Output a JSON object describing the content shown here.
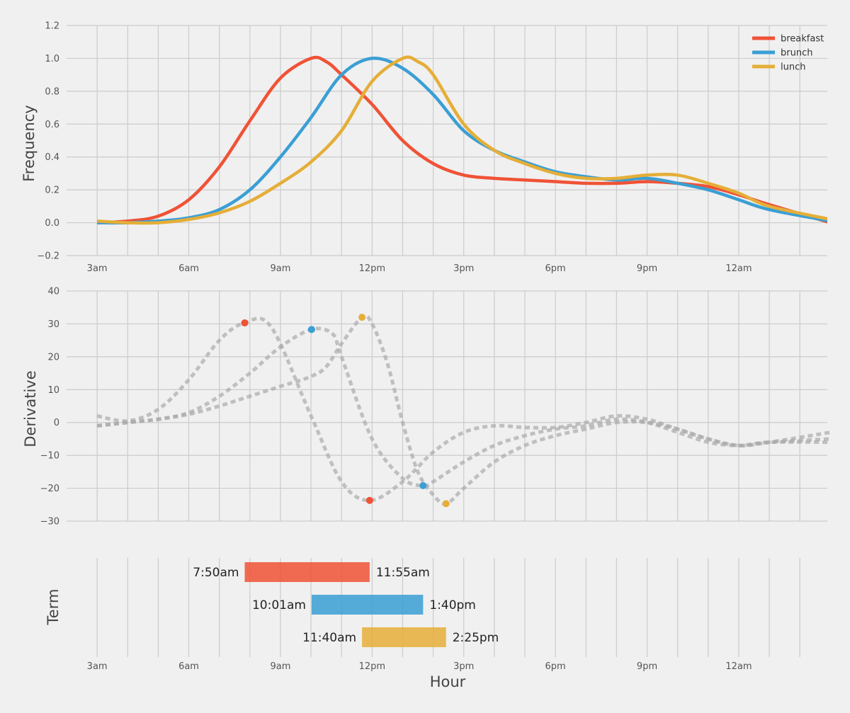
{
  "chart_data": [
    {
      "type": "line",
      "ylabel": "Frequency",
      "ylim": [
        -0.2,
        1.2
      ],
      "yticks": [
        -0.2,
        0.0,
        0.2,
        0.4,
        0.6,
        0.8,
        1.0,
        1.2
      ],
      "ytick_labels": [
        "−0.2",
        "0.0",
        "0.2",
        "0.4",
        "0.6",
        "0.8",
        "1.0",
        "1.2"
      ],
      "xticks": [
        3,
        6,
        9,
        12,
        15,
        18,
        21,
        24
      ],
      "xtick_labels": [
        "3am",
        "6am",
        "9am",
        "12pm",
        "3pm",
        "6pm",
        "9pm",
        "12am"
      ],
      "grid": true,
      "legend": "top-right",
      "series": [
        {
          "name": "breakfast",
          "color": "#f05236",
          "x": [
            3,
            4,
            5,
            6,
            7,
            8,
            9,
            10,
            10.5,
            11,
            12,
            13,
            14,
            15,
            16,
            17,
            18,
            19,
            20,
            21,
            22,
            23,
            24,
            25,
            27
          ],
          "y": [
            0.0,
            0.01,
            0.04,
            0.14,
            0.34,
            0.62,
            0.88,
            1.0,
            0.98,
            0.9,
            0.72,
            0.5,
            0.36,
            0.29,
            0.27,
            0.26,
            0.25,
            0.24,
            0.24,
            0.25,
            0.24,
            0.22,
            0.17,
            0.11,
            0.0
          ]
        },
        {
          "name": "brunch",
          "color": "#3a9fd4",
          "x": [
            3,
            4,
            5,
            6,
            7,
            8,
            9,
            10,
            11,
            12,
            13,
            14,
            15,
            16,
            17,
            18,
            19,
            20,
            21,
            22,
            23,
            24,
            25,
            27
          ],
          "y": [
            0.0,
            0.0,
            0.01,
            0.03,
            0.08,
            0.2,
            0.4,
            0.64,
            0.9,
            1.0,
            0.94,
            0.78,
            0.56,
            0.44,
            0.37,
            0.31,
            0.28,
            0.26,
            0.27,
            0.24,
            0.2,
            0.14,
            0.08,
            0.01
          ]
        },
        {
          "name": "lunch",
          "color": "#e5ae38",
          "x": [
            3,
            4,
            5,
            6,
            7,
            8,
            9,
            10,
            11,
            12,
            13,
            13.5,
            14,
            15,
            16,
            17,
            18,
            19,
            20,
            21,
            22,
            23,
            24,
            25,
            27
          ],
          "y": [
            0.01,
            0.0,
            0.0,
            0.02,
            0.06,
            0.13,
            0.24,
            0.37,
            0.56,
            0.86,
            1.0,
            0.98,
            0.9,
            0.6,
            0.44,
            0.36,
            0.3,
            0.27,
            0.27,
            0.29,
            0.29,
            0.24,
            0.18,
            0.1,
            0.02
          ]
        }
      ]
    },
    {
      "type": "line",
      "ylabel": "Derivative",
      "ylim": [
        -30,
        40
      ],
      "yticks": [
        -30,
        -20,
        -10,
        0,
        10,
        20,
        30,
        40
      ],
      "ytick_labels": [
        "−30",
        "−20",
        "−10",
        "0",
        "10",
        "20",
        "30",
        "40"
      ],
      "grid": true,
      "series": [
        {
          "name": "breakfast",
          "color": "#aaaaaa",
          "style": "dashed",
          "x": [
            3,
            4,
            5,
            6,
            7,
            7.83,
            8.7,
            10,
            11,
            11.92,
            13,
            14,
            15,
            16,
            17,
            18,
            19,
            20,
            21,
            22,
            23,
            24,
            25,
            27
          ],
          "y": [
            2,
            0.5,
            4,
            13,
            25,
            30.3,
            29,
            2,
            -18,
            -23.7,
            -18,
            -9,
            -3,
            -1,
            -1.5,
            -1.5,
            0,
            2,
            1,
            -2,
            -5,
            -7,
            -6,
            -3
          ]
        },
        {
          "name": "brunch",
          "color": "#aaaaaa",
          "style": "dashed",
          "x": [
            3,
            4,
            5,
            6,
            7,
            8,
            9,
            10.02,
            10.7,
            11,
            12,
            13,
            13.67,
            14,
            15,
            16,
            17,
            18,
            19,
            20,
            21,
            22,
            23,
            24,
            25,
            27
          ],
          "y": [
            -1,
            0,
            1,
            3,
            8,
            15,
            23,
            28.3,
            27,
            20,
            -5,
            -17,
            -19.2,
            -18,
            -12,
            -7,
            -4,
            -2,
            -1,
            1,
            0,
            -3,
            -6,
            -7,
            -6,
            -6
          ]
        },
        {
          "name": "lunch",
          "color": "#aaaaaa",
          "style": "dashed",
          "x": [
            3,
            4,
            5,
            6,
            7,
            8,
            9,
            10,
            10.5,
            11,
            11.67,
            12,
            12.5,
            13,
            13.5,
            14,
            14.42,
            15,
            16,
            17,
            18,
            19,
            20,
            21,
            22,
            23,
            24,
            25,
            27
          ],
          "y": [
            -1,
            0,
            1,
            2.5,
            5,
            8,
            11,
            14,
            17,
            24,
            32,
            30,
            18,
            0,
            -15,
            -22,
            -24.7,
            -20,
            -12,
            -7,
            -4,
            -2,
            0,
            0,
            -2,
            -5,
            -7,
            -6,
            -5
          ]
        }
      ],
      "markers": [
        {
          "name": "breakfast",
          "color": "#f05236",
          "points": [
            [
              7.83,
              30.3
            ],
            [
              11.92,
              -23.7
            ]
          ]
        },
        {
          "name": "brunch",
          "color": "#3a9fd4",
          "points": [
            [
              10.02,
              28.3
            ],
            [
              13.67,
              -19.2
            ]
          ]
        },
        {
          "name": "lunch",
          "color": "#e5ae38",
          "points": [
            [
              11.67,
              32.0
            ],
            [
              14.42,
              -24.7
            ]
          ]
        }
      ]
    },
    {
      "type": "bar",
      "orientation": "horizontal",
      "ylabel": "Term",
      "xlabel": "Hour",
      "xticks": [
        3,
        6,
        9,
        12,
        15,
        18,
        21,
        24
      ],
      "xtick_labels": [
        "3am",
        "6am",
        "9am",
        "12pm",
        "3pm",
        "6pm",
        "9pm",
        "12am"
      ],
      "grid": true,
      "bars": [
        {
          "name": "breakfast",
          "color": "#f05236",
          "start": 7.83,
          "end": 11.92,
          "start_label": "7:50am",
          "end_label": "11:55am"
        },
        {
          "name": "brunch",
          "color": "#3a9fd4",
          "start": 10.02,
          "end": 13.67,
          "start_label": "10:01am",
          "end_label": "1:40pm"
        },
        {
          "name": "lunch",
          "color": "#e5ae38",
          "start": 11.67,
          "end": 14.42,
          "start_label": "11:40am",
          "end_label": "2:25pm"
        }
      ]
    }
  ]
}
